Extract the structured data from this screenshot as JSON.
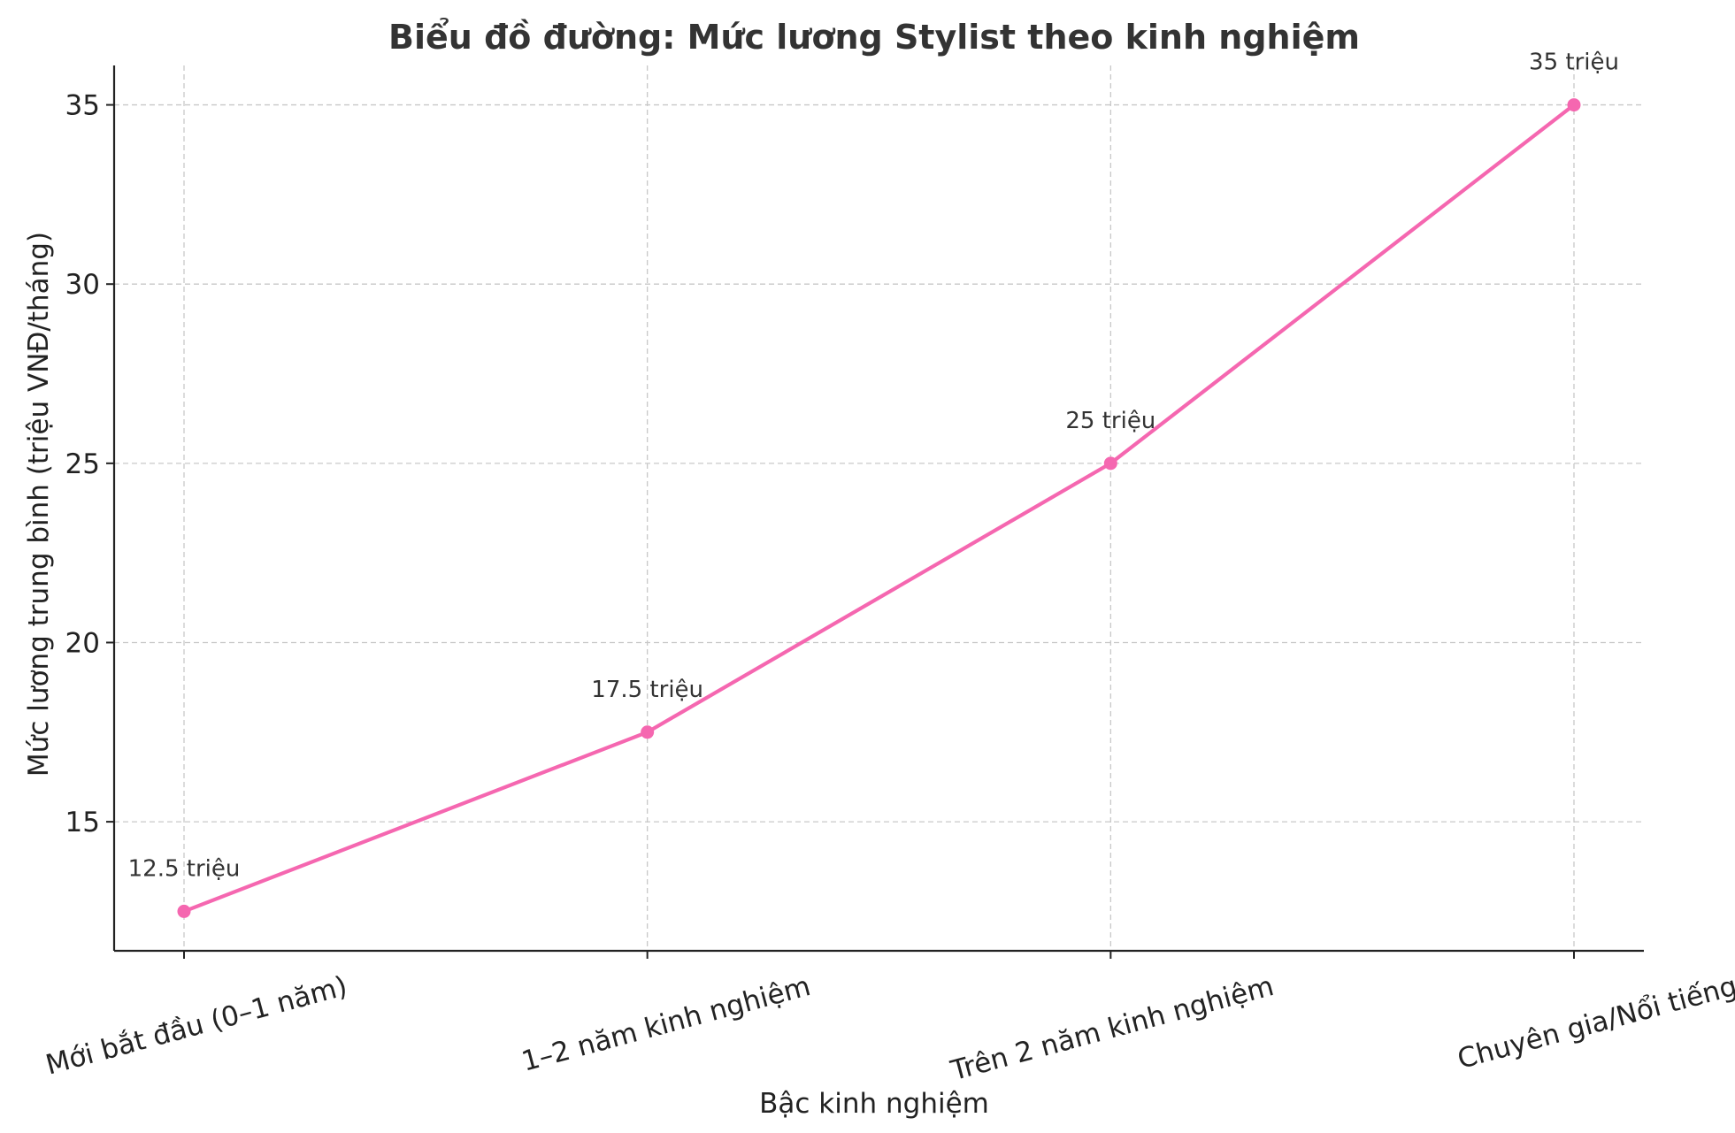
{
  "chart_data": {
    "type": "line",
    "title": "Biểu đồ đường: Mức lương Stylist theo kinh nghiệm",
    "xlabel": "Bậc kinh nghiệm",
    "ylabel": "Mức lương trung bình (triệu VNĐ/tháng)",
    "categories": [
      "Mới bắt đầu (0–1 năm)",
      "1–2 năm kinh nghiệm",
      "Trên 2 năm kinh nghiệm",
      "Chuyên gia/Nổi tiếng"
    ],
    "values": [
      12.5,
      17.5,
      25,
      35
    ],
    "data_labels": [
      "12.5 triệu",
      "17.5 triệu",
      "25 triệu",
      "35 triệu"
    ],
    "ylim": [
      11.4,
      36.1
    ],
    "yticks": [
      15,
      20,
      25,
      30,
      35
    ],
    "grid": true,
    "color": "#f567b0"
  }
}
